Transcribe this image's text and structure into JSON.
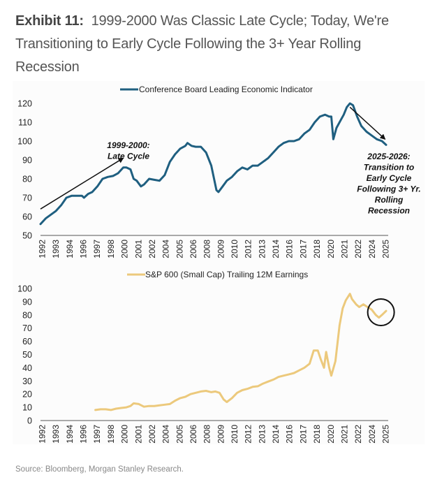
{
  "title": {
    "label": "Exhibit 11:",
    "text": "1999-2000 Was Classic Late Cycle; Today, We're Transitioning to Early Cycle Following the 3+ Year Rolling Recession"
  },
  "source": "Source: Bloomberg, Morgan Stanley Research.",
  "colors": {
    "lei": "#1f5f80",
    "earnings": "#ecc97c",
    "axis": "#777777",
    "text": "#222222"
  },
  "chart_data": [
    {
      "type": "line",
      "legend": "Conference Board Leading Economic Indicator",
      "legend_position": "top-center",
      "ylim": [
        50,
        120
      ],
      "yticks": [
        50,
        60,
        70,
        80,
        90,
        100,
        110,
        120
      ],
      "xlim": [
        1992,
        2025.6
      ],
      "xticks": [
        "1992",
        "1993",
        "1994",
        "1996",
        "1997",
        "1998",
        "2000",
        "2001",
        "2002",
        "2004",
        "2005",
        "2006",
        "2008",
        "2009",
        "2010",
        "2012",
        "2013",
        "2014",
        "2016",
        "2017",
        "2018",
        "2020",
        "2021",
        "2022",
        "2024",
        "2025"
      ],
      "grid": false,
      "annotations": [
        {
          "text": [
            "1999-2000:",
            "Late Cycle"
          ],
          "arrow_from": [
            1992,
            64
          ],
          "arrow_to": [
            2000,
            91
          ]
        },
        {
          "text": [
            "2025-2026:",
            "Transition to",
            "Early Cycle",
            "Following 3+ Yr.",
            "Rolling",
            "Recession"
          ],
          "arrow_from": [
            2021.9,
            118
          ],
          "arrow_to": [
            2025.3,
            101
          ]
        }
      ],
      "series": [
        {
          "name": "Conference Board Leading Economic Indicator",
          "x": [
            1992.0,
            1992.5,
            1993.0,
            1993.5,
            1994.0,
            1994.5,
            1995.0,
            1995.5,
            1996.0,
            1996.2,
            1996.6,
            1997.0,
            1997.5,
            1998.0,
            1998.5,
            1999.0,
            1999.5,
            2000.0,
            2000.3,
            2000.7,
            2001.0,
            2001.3,
            2001.7,
            2002.0,
            2002.5,
            2003.0,
            2003.5,
            2004.0,
            2004.5,
            2005.0,
            2005.5,
            2006.0,
            2006.2,
            2006.6,
            2007.0,
            2007.5,
            2008.0,
            2008.5,
            2009.0,
            2009.2,
            2009.6,
            2010.0,
            2010.5,
            2011.0,
            2011.5,
            2012.0,
            2012.5,
            2013.0,
            2013.5,
            2014.0,
            2014.5,
            2015.0,
            2015.5,
            2016.0,
            2016.5,
            2017.0,
            2017.5,
            2018.0,
            2018.5,
            2019.0,
            2019.5,
            2019.9,
            2020.1,
            2020.3,
            2020.6,
            2021.0,
            2021.3,
            2021.6,
            2021.9,
            2022.2,
            2022.6,
            2023.0,
            2023.5,
            2024.0,
            2024.5,
            2025.0,
            2025.4
          ],
          "values": [
            56,
            59,
            61,
            63,
            66,
            70,
            71,
            71,
            71,
            70,
            72,
            73,
            76,
            80,
            81,
            81.5,
            83,
            86,
            86,
            85,
            80,
            79,
            76,
            77,
            80,
            79.5,
            79,
            82,
            89,
            93,
            96,
            97.5,
            99,
            97.5,
            97,
            97,
            94,
            87,
            74,
            73,
            76,
            79,
            81,
            84,
            86,
            85,
            87,
            87,
            89,
            91,
            94,
            97,
            99,
            100,
            100,
            101,
            104,
            106,
            110,
            113,
            114,
            113,
            113,
            101,
            107,
            111,
            114,
            118,
            120,
            119,
            113,
            108,
            105,
            103,
            101,
            100,
            98
          ]
        }
      ]
    },
    {
      "type": "line",
      "legend": "S&P 600 (Small Cap) Trailing 12M Earnings",
      "legend_position": "top-center",
      "ylim": [
        0,
        100
      ],
      "yticks": [
        0,
        10,
        20,
        30,
        40,
        50,
        60,
        70,
        80,
        90,
        100
      ],
      "xlim": [
        1992,
        2025.6
      ],
      "xticks": [
        "1992",
        "1993",
        "1994",
        "1996",
        "1997",
        "1998",
        "2000",
        "2001",
        "2002",
        "2004",
        "2005",
        "2006",
        "2008",
        "2009",
        "2010",
        "2012",
        "2013",
        "2014",
        "2016",
        "2017",
        "2018",
        "2020",
        "2021",
        "2022",
        "2024",
        "2025"
      ],
      "grid": false,
      "annotations": [
        {
          "type": "circle",
          "center": [
            2024.9,
            82
          ],
          "note": "highlighted recent trough"
        }
      ],
      "series": [
        {
          "name": "S&P 600 (Small Cap) Trailing 12M Earnings",
          "x": [
            1997.3,
            1997.8,
            1998.3,
            1998.8,
            1999.3,
            1999.8,
            2000.3,
            2000.7,
            2001.0,
            2001.5,
            2002.0,
            2002.5,
            2003.0,
            2003.5,
            2004.0,
            2004.5,
            2005.0,
            2005.5,
            2006.0,
            2006.5,
            2007.0,
            2007.5,
            2008.0,
            2008.5,
            2008.9,
            2009.3,
            2009.7,
            2010.0,
            2010.5,
            2011.0,
            2011.5,
            2012.0,
            2012.5,
            2013.0,
            2013.5,
            2014.0,
            2014.5,
            2015.0,
            2015.5,
            2016.0,
            2016.5,
            2017.0,
            2017.5,
            2018.0,
            2018.4,
            2018.8,
            2019.1,
            2019.4,
            2019.6,
            2019.9,
            2020.1,
            2020.5,
            2020.9,
            2021.2,
            2021.5,
            2021.9,
            2022.1,
            2022.5,
            2022.8,
            2023.2,
            2023.6,
            2024.0,
            2024.4,
            2024.7,
            2025.0,
            2025.4
          ],
          "values": [
            8,
            8.5,
            8.5,
            8,
            9,
            9.5,
            10,
            11,
            13,
            12.5,
            10.5,
            11,
            11,
            11.5,
            12,
            12.5,
            15,
            17,
            18,
            20,
            21,
            22,
            22.5,
            21.5,
            22,
            21,
            16,
            14,
            17,
            21,
            23,
            24,
            25.5,
            26,
            28,
            29.5,
            31,
            33,
            34,
            35,
            36,
            38,
            40,
            43,
            53,
            53,
            46,
            40,
            52,
            40,
            34,
            45,
            72,
            85,
            91,
            96,
            92,
            88,
            86,
            88,
            86,
            84,
            80,
            78,
            80,
            83
          ]
        }
      ]
    }
  ]
}
